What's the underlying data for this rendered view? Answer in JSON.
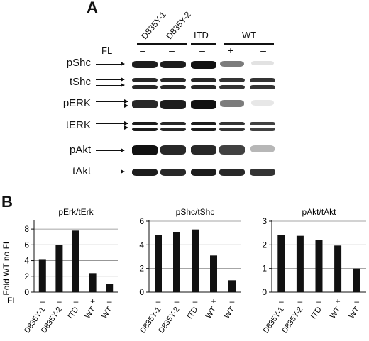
{
  "panel_a": {
    "letter": "A",
    "group_labels": [
      "D835Y-1",
      "D835Y-2",
      "ITD",
      "WT"
    ],
    "fl_label": "FL",
    "fl_signs": [
      "–",
      "–",
      "–",
      "+",
      "–"
    ],
    "row_labels": [
      "pShc",
      "tShc",
      "pERK",
      "tERK",
      "pAkt",
      "tAkt"
    ],
    "bands": {
      "pShc": [
        0.95,
        0.95,
        1.0,
        0.55,
        0.12
      ],
      "tShc": [
        0.9,
        0.9,
        0.9,
        0.85,
        0.85
      ],
      "pERK": [
        0.9,
        0.95,
        1.0,
        0.55,
        0.1
      ],
      "tERK": [
        0.95,
        0.9,
        0.95,
        0.85,
        0.8
      ],
      "pAkt": [
        1.0,
        0.9,
        0.9,
        0.8,
        0.3
      ],
      "tAkt": [
        0.95,
        0.9,
        0.95,
        0.9,
        0.85
      ]
    }
  },
  "panel_b": {
    "letter": "B",
    "y_axis_label": "Fold WT no FL",
    "fl_label": "FL",
    "x_labels": [
      "D835Y-1",
      "D835Y-2",
      "ITD",
      "WT",
      "WT"
    ],
    "fl_signs": [
      "–",
      "–",
      "–",
      "+",
      "–"
    ]
  },
  "chart_data": [
    {
      "type": "bar",
      "title": "pErk/tErk",
      "categories": [
        "D835Y-1",
        "D835Y-2",
        "ITD",
        "WT",
        "WT"
      ],
      "values": [
        4.1,
        6.0,
        7.8,
        2.4,
        1.0
      ],
      "ylim": [
        0,
        9
      ],
      "yticks": [
        0,
        2,
        4,
        6,
        8
      ],
      "grid": true
    },
    {
      "type": "bar",
      "title": "pShc/tShc",
      "categories": [
        "D835Y-1",
        "D835Y-2",
        "ITD",
        "WT",
        "WT"
      ],
      "values": [
        4.85,
        5.1,
        5.3,
        3.1,
        1.0
      ],
      "ylim": [
        0,
        6
      ],
      "yticks": [
        0,
        2,
        4,
        6
      ],
      "grid": true
    },
    {
      "type": "bar",
      "title": "pAkt/tAkt",
      "categories": [
        "D835Y-1",
        "D835Y-2",
        "ITD",
        "WT",
        "WT"
      ],
      "values": [
        2.4,
        2.38,
        2.22,
        1.97,
        1.0
      ],
      "ylim": [
        0,
        3
      ],
      "yticks": [
        0,
        1,
        2,
        3
      ],
      "grid": true
    }
  ]
}
